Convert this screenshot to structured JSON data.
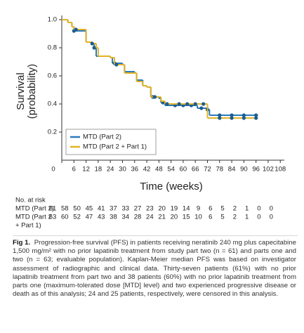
{
  "chart_data": {
    "type": "step",
    "y_label": [
      "Survival",
      "(probability)"
    ],
    "x_label": "Time (weeks)",
    "xlim": [
      0,
      110
    ],
    "ylim": [
      0,
      1.0
    ],
    "xticks": [
      0,
      6,
      12,
      18,
      24,
      30,
      36,
      42,
      48,
      54,
      60,
      66,
      72,
      78,
      84,
      90,
      96,
      102,
      108
    ],
    "yticks": [
      0.2,
      0.4,
      0.6,
      0.8,
      {
        "value": 1,
        "label": "1.0"
      }
    ],
    "legend": "lower left",
    "series": [
      {
        "name": "MTD (Part 2)",
        "color": "#2b7bbf",
        "x": [
          0,
          3,
          5,
          6,
          12,
          15,
          16,
          17,
          24,
          25,
          30,
          31,
          36,
          37,
          40,
          42,
          44,
          48,
          49,
          51,
          66,
          67,
          72,
          73,
          97
        ],
        "y": [
          1,
          0.98,
          0.95,
          0.92,
          0.84,
          0.83,
          0.8,
          0.74,
          0.73,
          0.69,
          0.68,
          0.63,
          0.62,
          0.57,
          0.53,
          0.52,
          0.45,
          0.44,
          0.41,
          0.39,
          0.39,
          0.37,
          0.36,
          0.32,
          0.32
        ],
        "censored": {
          "x": [
            6,
            16,
            26,
            45,
            50,
            56,
            60,
            64,
            69,
            72,
            78,
            84,
            90,
            96
          ],
          "y": [
            0.92,
            0.8,
            0.69,
            0.45,
            0.41,
            0.39,
            0.39,
            0.39,
            0.37,
            0.36,
            0.32,
            0.32,
            0.32,
            0.32
          ]
        }
      },
      {
        "name": "MTD (Part 2 + Part 1)",
        "color": "#e2b228",
        "x": [
          0,
          3,
          5,
          6,
          12,
          15,
          17,
          18,
          24,
          26,
          31,
          37,
          40,
          42,
          44,
          49,
          51,
          72,
          97
        ],
        "y": [
          1,
          0.98,
          0.95,
          0.93,
          0.84,
          0.83,
          0.8,
          0.74,
          0.73,
          0.68,
          0.62,
          0.56,
          0.53,
          0.52,
          0.45,
          0.42,
          0.4,
          0.3,
          0.3
        ],
        "censored": {
          "x": [
            7,
            15,
            27,
            46,
            52,
            58,
            62,
            66,
            70,
            78,
            84,
            90,
            96
          ],
          "y": [
            0.93,
            0.83,
            0.68,
            0.45,
            0.4,
            0.4,
            0.4,
            0.4,
            0.4,
            0.3,
            0.3,
            0.3,
            0.3
          ]
        }
      }
    ]
  },
  "at_risk": {
    "title": "No. at risk",
    "rows": [
      {
        "label": [
          "MTD (Part 2)"
        ],
        "values": [
          61,
          58,
          50,
          45,
          41,
          37,
          33,
          27,
          23,
          20,
          19,
          14,
          9,
          6,
          5,
          2,
          1,
          0,
          0
        ]
      },
      {
        "label": [
          "MTD (Part 2",
          "+ Part 1)"
        ],
        "values": [
          63,
          60,
          52,
          47,
          43,
          38,
          34,
          28,
          24,
          21,
          20,
          15,
          10,
          6,
          5,
          2,
          1,
          0,
          0
        ]
      }
    ]
  },
  "caption": {
    "label": "Fig 1.",
    "text": "Progression-free survival (PFS) in patients receiving neratinib 240 mg plus capecitabine 1,500 mg/m² with no prior lapatinib treatment from study part two (n = 61) and parts one and two (n = 63; evaluable population). Kaplan-Meier median PFS was based on investigator assessment of radiographic and clinical data. Thirty-seven patients (61%) with no prior lapatinib treatment from part two and 38 patients (60%) with no prior lapatinib treatment from parts one (maximum-tolerated dose [MTD] level) and two experienced progressive disease or death as of this analysis; 24 and 25 patients, respectively, were censored in this analysis."
  }
}
